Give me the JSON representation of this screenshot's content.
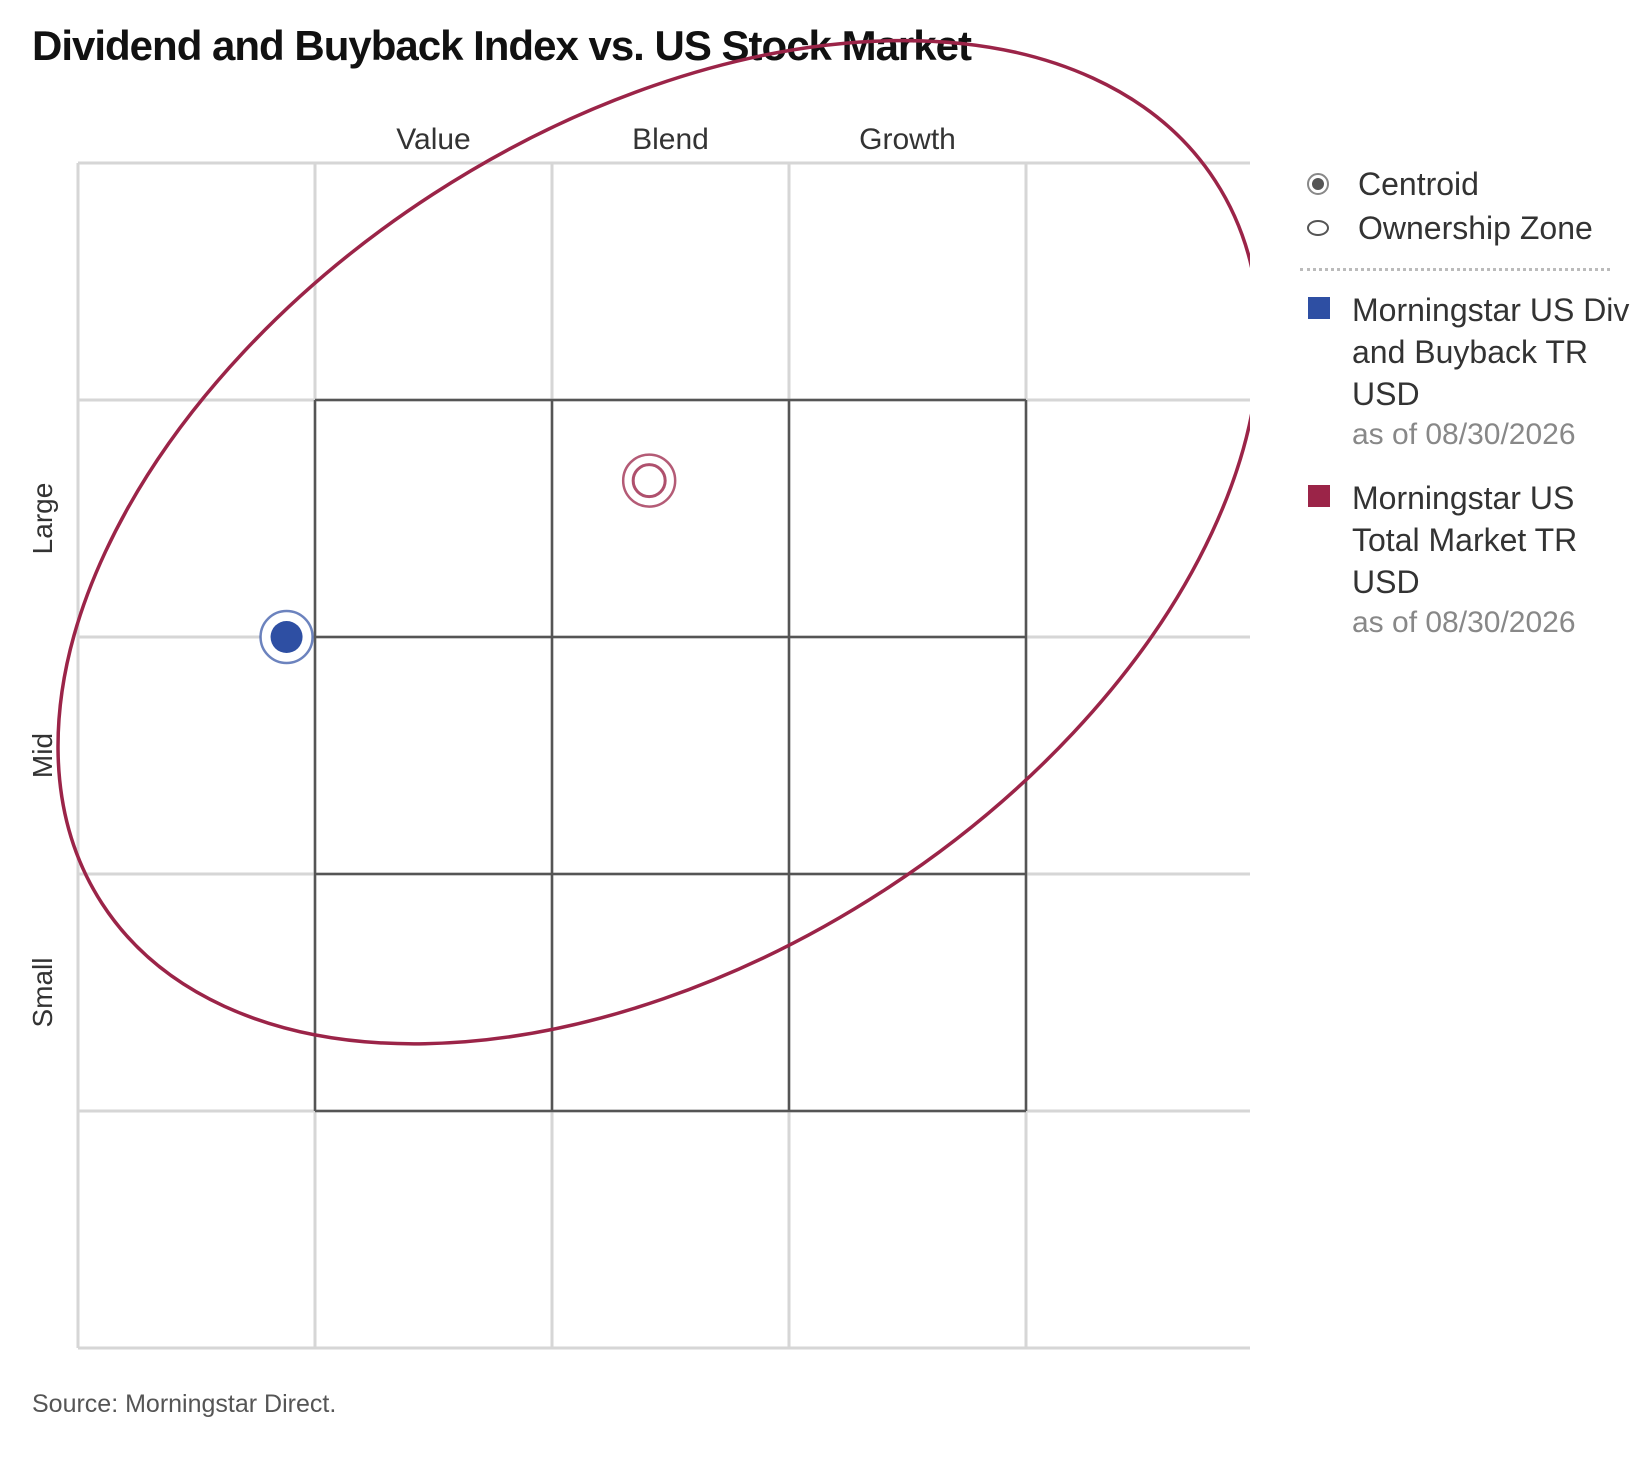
{
  "title": "Dividend and Buyback Index vs. US Stock Market",
  "source": "Source: Morningstar Direct.",
  "legend": {
    "centroid_label": "Centroid",
    "ownership_zone_label": "Ownership Zone"
  },
  "colors": {
    "div_buyback": "#2e4fa3",
    "total_market": "#9b2448",
    "inner_grid": "#555555",
    "outer_grid": "#d6d6d6"
  },
  "chart_data": {
    "type": "scatter",
    "title": "Dividend and Buyback Index vs. US Stock Market",
    "x_categories": [
      "Value",
      "Blend",
      "Growth"
    ],
    "y_categories": [
      "Large",
      "Mid",
      "Small"
    ],
    "xlim": [
      -1,
      4
    ],
    "ylim": [
      -1,
      4
    ],
    "grid": true,
    "legend_position": "right",
    "series": [
      {
        "name": "Morningstar US Div and Buyback TR USD",
        "date_label": "as of 08/30/2026",
        "color": "#2e4fa3",
        "centroid": {
          "x": -0.12,
          "y": 2.0
        },
        "ownership_zone": null
      },
      {
        "name": "Morningstar US Total Market TR USD",
        "date_label": "as of 08/30/2026",
        "color": "#9b2448",
        "centroid": {
          "x": 1.41,
          "y": 2.66
        },
        "ownership_zone": {
          "cx": 1.45,
          "cy": 2.4,
          "rx": 2.8,
          "ry": 1.75,
          "rotation_deg": -33
        }
      }
    ]
  }
}
